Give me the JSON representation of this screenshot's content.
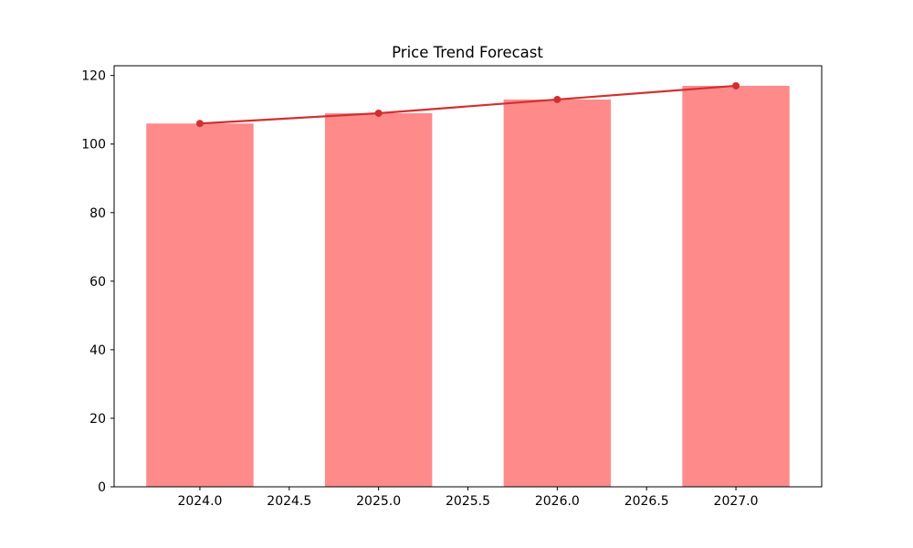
{
  "figure": {
    "background": "#ffffff"
  },
  "chart_data": {
    "type": "combo",
    "title": "Price Trend Forecast",
    "x": [
      2024,
      2025,
      2026,
      2027
    ],
    "categories": [
      "2024",
      "2025",
      "2026",
      "2027"
    ],
    "series": [
      {
        "name": "price-bars",
        "type": "bar",
        "values": [
          106,
          109,
          113,
          117
        ],
        "color": "#ff8a8a",
        "bar_width_years": 0.6
      },
      {
        "name": "trend-line",
        "type": "line",
        "values": [
          106,
          109,
          113,
          117
        ],
        "color": "#d03030",
        "marker": "circle",
        "line_width": 2.2,
        "marker_radius": 4
      }
    ],
    "xlabel": "",
    "ylabel": "",
    "xlim": [
      2023.52,
      2027.48
    ],
    "ylim": [
      0,
      122.85
    ],
    "x_ticks": [
      2024.0,
      2024.5,
      2025.0,
      2025.5,
      2026.0,
      2026.5,
      2027.0
    ],
    "x_tick_labels": [
      "2024.0",
      "2024.5",
      "2025.0",
      "2025.5",
      "2026.0",
      "2026.5",
      "2027.0"
    ],
    "y_ticks": [
      0,
      20,
      40,
      60,
      80,
      100,
      120
    ],
    "y_tick_labels": [
      "0",
      "20",
      "40",
      "60",
      "80",
      "100",
      "120"
    ],
    "grid": false,
    "legend": null,
    "axis_color": "#000000",
    "tick_label_color": "#000000"
  }
}
